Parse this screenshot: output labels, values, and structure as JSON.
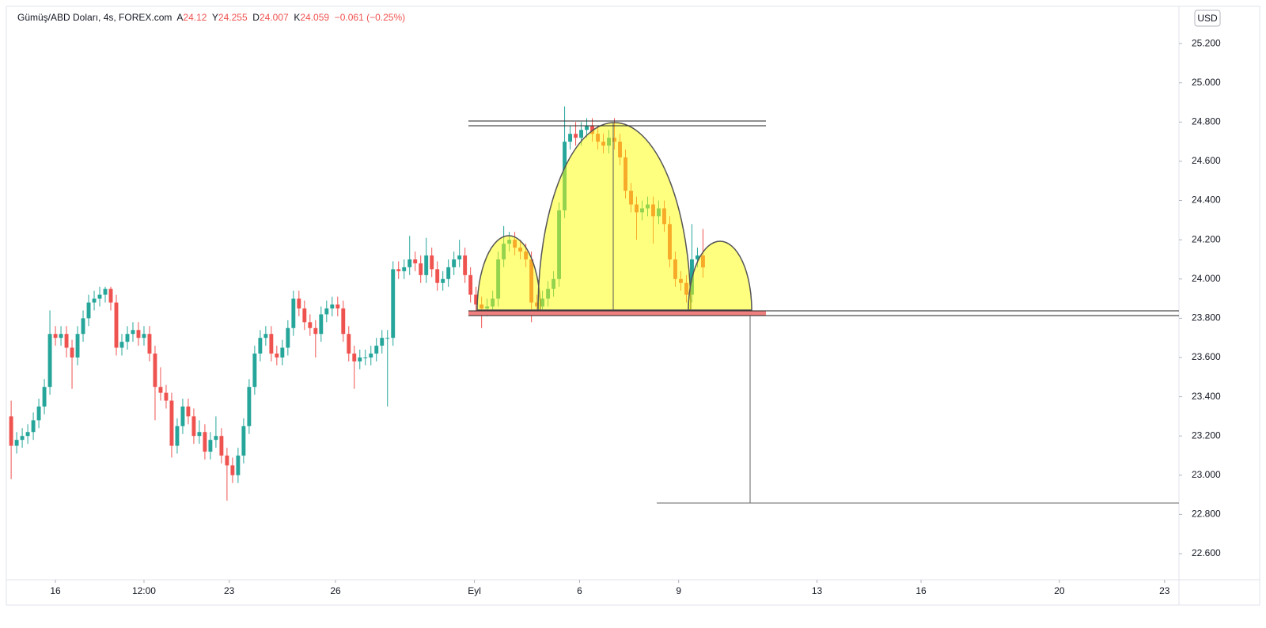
{
  "chart_data": {
    "type": "candlestick",
    "title": "Gümüş/ABD Doları, 4s, FOREX.com",
    "ohlc_labels": [
      "A",
      "Y",
      "D",
      "K"
    ],
    "change_label": "−0.061 (−0.25%)",
    "currency": "USD",
    "up_color": "#26a69a",
    "down_color": "#ef5350",
    "grid": false,
    "xlim": [
      -0.3,
      211
    ],
    "xticks": [
      {
        "value": 8,
        "label": "16"
      },
      {
        "value": 24,
        "label": "12:00"
      },
      {
        "value": 39.4,
        "label": "23"
      },
      {
        "value": 58.6,
        "label": "26"
      },
      {
        "value": 83.7,
        "label": "Eyl"
      },
      {
        "value": 102.7,
        "label": "6"
      },
      {
        "value": 120.6,
        "label": "9"
      },
      {
        "value": 145.6,
        "label": "13"
      },
      {
        "value": 164.4,
        "label": "16"
      },
      {
        "value": 189.4,
        "label": "20"
      },
      {
        "value": 208.4,
        "label": "23"
      }
    ],
    "ylim": [
      22.467,
      25.39
    ],
    "yticks": [
      {
        "value": 22.6,
        "label": "22.600"
      },
      {
        "value": 22.8,
        "label": "22.800"
      },
      {
        "value": 23.0,
        "label": "23.000"
      },
      {
        "value": 23.2,
        "label": "23.200"
      },
      {
        "value": 23.4,
        "label": "23.400"
      },
      {
        "value": 23.6,
        "label": "23.600"
      },
      {
        "value": 23.8,
        "label": "23.800"
      },
      {
        "value": 24.0,
        "label": "24.000"
      },
      {
        "value": 24.2,
        "label": "24.200"
      },
      {
        "value": 24.4,
        "label": "24.400"
      },
      {
        "value": 24.6,
        "label": "24.600"
      },
      {
        "value": 24.8,
        "label": "24.800"
      },
      {
        "value": 25.0,
        "label": "25.000"
      },
      {
        "value": 25.2,
        "label": "25.200"
      }
    ],
    "open": [
      23.3,
      23.15,
      23.18,
      23.2,
      23.22,
      23.28,
      23.35,
      23.45,
      23.72,
      23.7,
      23.72,
      23.65,
      23.6,
      23.72,
      23.8,
      23.88,
      23.9,
      23.92,
      23.95,
      23.88,
      23.65,
      23.68,
      23.72,
      23.74,
      23.7,
      23.72,
      23.62,
      23.45,
      23.42,
      23.38,
      23.15,
      23.25,
      23.35,
      23.3,
      23.2,
      23.22,
      23.12,
      23.18,
      23.2,
      23.1,
      23.05,
      23.0,
      23.1,
      23.25,
      23.45,
      23.62,
      23.7,
      23.72,
      23.62,
      23.6,
      23.65,
      23.75,
      23.9,
      23.85,
      23.78,
      23.75,
      23.72,
      23.82,
      23.85,
      23.87,
      23.85,
      23.72,
      23.62,
      23.58,
      23.6,
      23.6,
      23.62,
      23.66,
      23.7,
      23.7,
      24.05,
      24.04,
      24.06,
      24.1,
      24.08,
      24.02,
      24.12,
      24.05,
      23.98,
      24.0,
      24.06,
      24.1,
      24.12,
      24.02,
      23.92,
      23.87,
      23.85,
      23.86,
      23.9,
      24.1,
      24.18,
      24.2,
      24.16,
      24.14,
      24.1,
      23.88,
      23.86,
      23.9,
      23.95,
      24.0,
      24.35,
      24.7,
      24.74,
      24.72,
      24.76,
      24.78,
      24.74,
      24.7,
      24.68,
      24.72,
      24.7,
      24.62,
      24.45,
      24.38,
      24.34,
      24.36,
      24.38,
      24.32,
      24.36,
      24.28,
      24.1,
      24.0,
      23.98,
      23.92,
      24.1,
      24.12
    ],
    "high": [
      23.38,
      23.22,
      23.24,
      23.26,
      23.32,
      23.39,
      23.49,
      23.84,
      23.76,
      23.76,
      23.76,
      23.69,
      23.76,
      23.84,
      23.92,
      23.94,
      23.96,
      23.96,
      23.96,
      23.92,
      23.72,
      23.76,
      23.78,
      23.78,
      23.76,
      23.76,
      23.66,
      23.55,
      23.46,
      23.42,
      23.29,
      23.39,
      23.39,
      23.34,
      23.28,
      23.26,
      23.22,
      23.3,
      23.24,
      23.14,
      23.09,
      23.14,
      23.29,
      23.49,
      23.66,
      23.74,
      23.76,
      23.76,
      23.66,
      23.69,
      23.79,
      23.94,
      23.94,
      23.89,
      23.82,
      23.79,
      23.86,
      23.89,
      23.91,
      23.91,
      23.89,
      23.76,
      23.66,
      23.64,
      23.64,
      23.66,
      23.7,
      23.74,
      23.74,
      24.09,
      24.09,
      24.1,
      24.22,
      24.14,
      24.12,
      24.21,
      24.16,
      24.09,
      24.04,
      24.1,
      24.14,
      24.2,
      24.16,
      24.06,
      23.96,
      23.91,
      23.9,
      23.94,
      24.14,
      24.27,
      24.24,
      24.24,
      24.2,
      24.18,
      24.14,
      23.92,
      23.94,
      23.99,
      24.04,
      24.39,
      24.88,
      24.78,
      24.8,
      24.8,
      24.82,
      24.82,
      24.78,
      24.74,
      24.76,
      24.82,
      24.74,
      24.66,
      24.49,
      24.42,
      24.4,
      24.42,
      24.42,
      24.4,
      24.4,
      24.32,
      24.14,
      24.04,
      24.02,
      24.28,
      24.16,
      24.255
    ],
    "low": [
      22.98,
      23.11,
      23.14,
      23.16,
      23.18,
      23.24,
      23.31,
      23.41,
      23.66,
      23.66,
      23.6,
      23.44,
      23.56,
      23.68,
      23.76,
      23.84,
      23.86,
      23.88,
      23.84,
      23.61,
      23.61,
      23.64,
      23.68,
      23.66,
      23.66,
      23.58,
      23.28,
      23.38,
      23.34,
      23.09,
      23.11,
      23.21,
      23.26,
      23.16,
      23.16,
      23.08,
      23.08,
      23.14,
      23.06,
      22.87,
      22.96,
      22.96,
      23.06,
      23.21,
      23.41,
      23.58,
      23.66,
      23.58,
      23.56,
      23.56,
      23.61,
      23.71,
      23.81,
      23.74,
      23.71,
      23.6,
      23.68,
      23.78,
      23.81,
      23.81,
      23.68,
      23.58,
      23.44,
      23.54,
      23.56,
      23.56,
      23.58,
      23.62,
      23.35,
      23.66,
      24.0,
      24.0,
      24.02,
      24.04,
      23.98,
      23.98,
      24.01,
      23.94,
      23.94,
      23.96,
      24.02,
      24.06,
      23.98,
      23.88,
      23.83,
      23.75,
      23.81,
      23.82,
      23.86,
      24.06,
      24.14,
      24.12,
      24.1,
      24.06,
      23.78,
      23.82,
      23.82,
      23.86,
      23.91,
      23.96,
      24.31,
      24.66,
      24.68,
      24.68,
      24.72,
      24.7,
      24.66,
      24.64,
      24.64,
      24.66,
      24.58,
      24.41,
      24.34,
      24.2,
      24.3,
      24.32,
      24.18,
      24.28,
      24.24,
      24.06,
      23.96,
      23.94,
      23.88,
      23.88,
      24.06,
      24.007
    ],
    "close": [
      23.15,
      23.18,
      23.2,
      23.22,
      23.28,
      23.35,
      23.45,
      23.72,
      23.7,
      23.72,
      23.65,
      23.6,
      23.72,
      23.8,
      23.88,
      23.9,
      23.92,
      23.95,
      23.88,
      23.65,
      23.68,
      23.72,
      23.74,
      23.7,
      23.72,
      23.62,
      23.45,
      23.42,
      23.38,
      23.15,
      23.25,
      23.35,
      23.3,
      23.2,
      23.22,
      23.12,
      23.18,
      23.2,
      23.1,
      23.05,
      23.0,
      23.1,
      23.25,
      23.45,
      23.62,
      23.7,
      23.72,
      23.62,
      23.6,
      23.65,
      23.75,
      23.9,
      23.85,
      23.78,
      23.75,
      23.72,
      23.82,
      23.85,
      23.87,
      23.85,
      23.72,
      23.62,
      23.58,
      23.6,
      23.6,
      23.62,
      23.66,
      23.7,
      23.7,
      24.05,
      24.04,
      24.06,
      24.1,
      24.08,
      24.02,
      24.12,
      24.05,
      23.98,
      24.0,
      24.06,
      24.1,
      24.12,
      24.02,
      23.92,
      23.87,
      23.85,
      23.86,
      23.9,
      24.1,
      24.18,
      24.2,
      24.16,
      24.14,
      24.1,
      23.88,
      23.86,
      23.9,
      23.95,
      24.0,
      24.35,
      24.7,
      24.74,
      24.72,
      24.76,
      24.78,
      24.74,
      24.7,
      24.68,
      24.72,
      24.7,
      24.62,
      24.45,
      24.38,
      24.34,
      24.36,
      24.38,
      24.32,
      24.36,
      24.28,
      24.1,
      24.0,
      23.98,
      23.92,
      24.1,
      24.12,
      24.059
    ]
  }
}
